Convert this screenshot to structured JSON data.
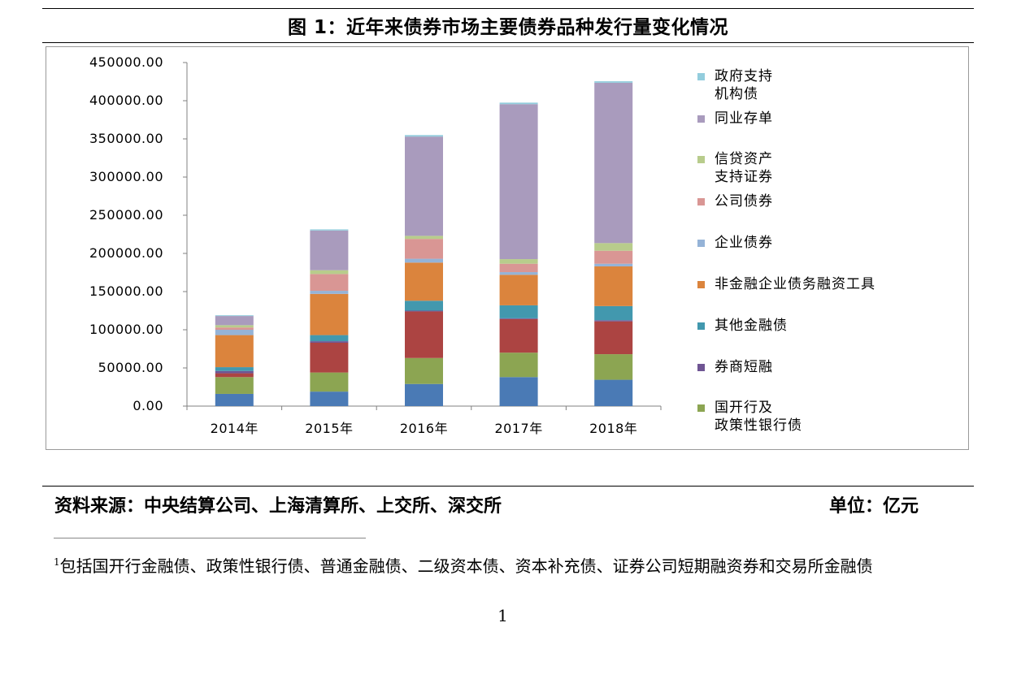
{
  "figure_title": "图 1：近年来债券市场主要债券品种发行量变化情况",
  "source_text": "资料来源：中央结算公司、上海清算所、上交所、深交所",
  "unit_text": "单位：亿元",
  "footnote": {
    "marker": "1",
    "text": "包括国开行金融债、政策性银行债、普通金融债、二级资本债、资本补充债、证券公司短期融资券和交易所金融债"
  },
  "page_number": "1",
  "chart_data": {
    "type": "bar",
    "stacked": true,
    "categories": [
      "2014年",
      "2015年",
      "2016年",
      "2017年",
      "2018年"
    ],
    "y_tick_labels": [
      "450000.00",
      "400000.00",
      "350000.00",
      "300000.00",
      "250000.00",
      "200000.00",
      "150000.00",
      "100000.00",
      "50000.00",
      "0.00"
    ],
    "ylim": [
      0,
      450000
    ],
    "grid": false,
    "legend_position": "right",
    "series": [
      {
        "name": "",
        "color": "#4a7ab5",
        "values": [
          16000,
          19000,
          29000,
          38000,
          34500
        ]
      },
      {
        "name": "国开行及政策性银行债",
        "color": "#8ca552",
        "values": [
          22000,
          25000,
          34000,
          32000,
          33500
        ]
      },
      {
        "name": "",
        "color": "#ac4442",
        "values": [
          5000,
          39000,
          61000,
          44000,
          43000
        ]
      },
      {
        "name": "券商短融",
        "color": "#6f5593",
        "values": [
          3000,
          2000,
          1000,
          1000,
          1500
        ]
      },
      {
        "name": "其他金融债",
        "color": "#4298ae",
        "values": [
          5000,
          8000,
          13000,
          17000,
          18500
        ]
      },
      {
        "name": "非金融企业债务融资工具",
        "color": "#db843d",
        "values": [
          42000,
          54000,
          50000,
          40000,
          52000
        ]
      },
      {
        "name": "企业债券",
        "color": "#95b3d7",
        "values": [
          7000,
          4000,
          5000,
          3500,
          3500
        ]
      },
      {
        "name": "公司债券",
        "color": "#d99694",
        "values": [
          3000,
          22000,
          26000,
          11000,
          17000
        ]
      },
      {
        "name": "信贷资产支持证券",
        "color": "#b8cc8c",
        "values": [
          3000,
          5000,
          4000,
          6000,
          10000
        ]
      },
      {
        "name": "同业存单",
        "color": "#a99bbd",
        "values": [
          12000,
          52000,
          130000,
          203000,
          210000
        ]
      },
      {
        "name": "政府支持机构债",
        "color": "#93cddd",
        "values": [
          1000,
          1500,
          2000,
          2000,
          2000
        ]
      }
    ],
    "legend": [
      {
        "label_lines": [
          "政府支持",
          "机构债"
        ],
        "color": "#93cddd"
      },
      {
        "label_lines": [
          "同业存单"
        ],
        "color": "#a99bbd"
      },
      {
        "label_lines": [
          "信贷资产",
          "支持证券"
        ],
        "color": "#b8cc8c"
      },
      {
        "label_lines": [
          "公司债券"
        ],
        "color": "#d99694"
      },
      {
        "label_lines": [
          "企业债券"
        ],
        "color": "#95b3d7"
      },
      {
        "label_lines": [
          "非金融企业债务融资工具"
        ],
        "color": "#db843d"
      },
      {
        "label_lines": [
          "其他金融债"
        ],
        "color": "#4298ae"
      },
      {
        "label_lines": [
          "券商短融"
        ],
        "color": "#6f5593"
      },
      {
        "label_lines": [
          "国开行及",
          "政策性银行债"
        ],
        "color": "#8ca552"
      }
    ]
  }
}
